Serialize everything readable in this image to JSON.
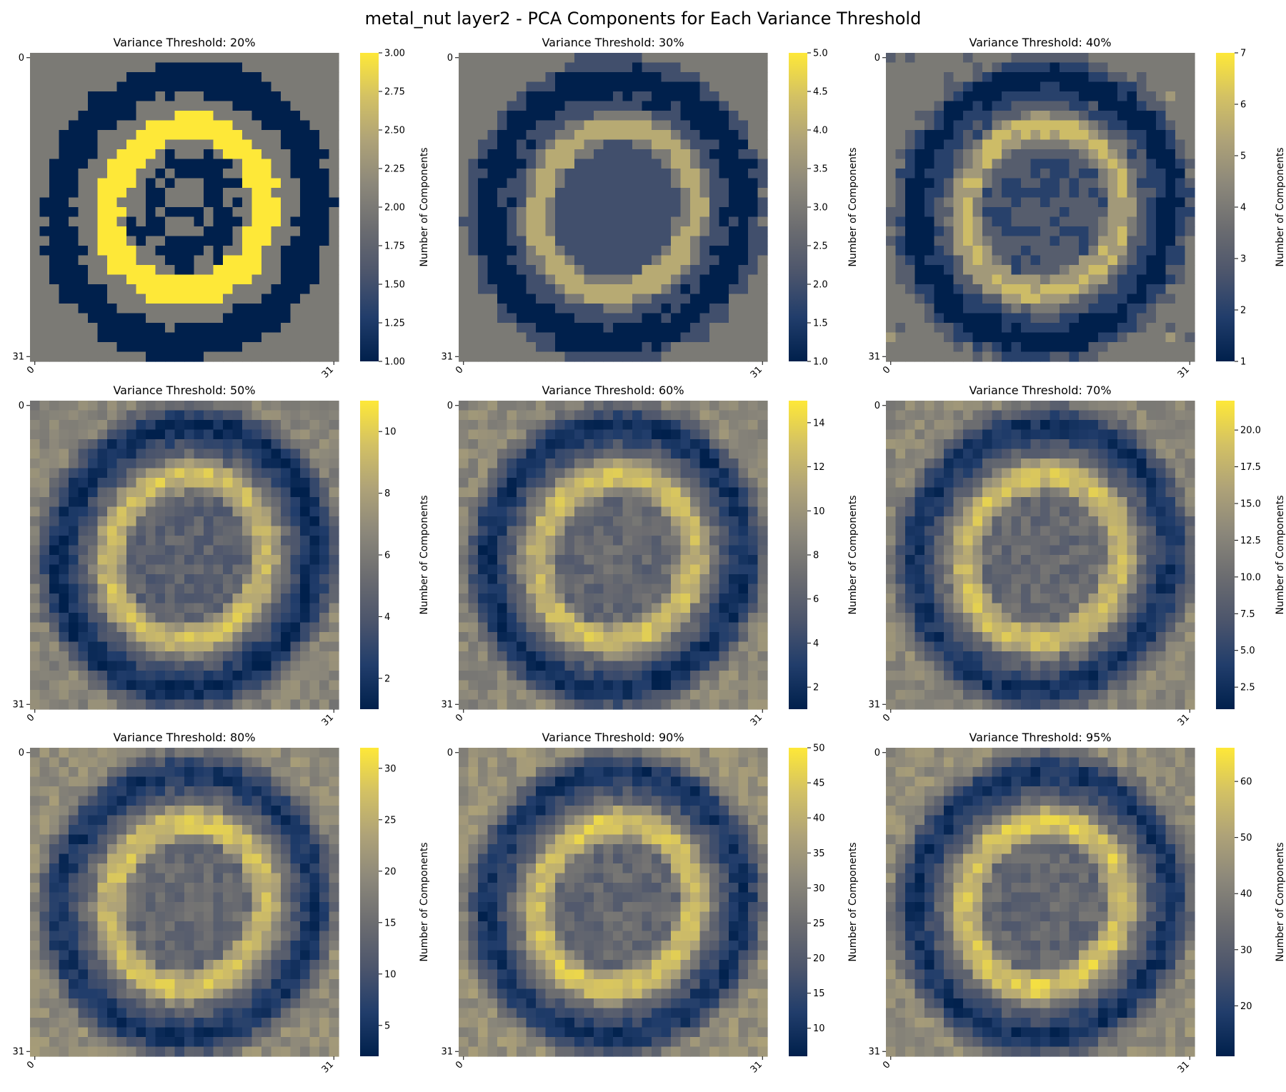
{
  "title": "metal_nut layer2 - PCA Components for Each Variance Threshold",
  "colormap": {
    "name": "cividis",
    "stops": [
      "#00204c",
      "#213d6b",
      "#4c556c",
      "#6b6c70",
      "#8b877a",
      "#aea278",
      "#d3c164",
      "#fee838"
    ]
  },
  "chart_data": [
    {
      "type": "heatmap",
      "title": "Variance Threshold: 20%",
      "threshold": 20,
      "vmin": 1,
      "vmax": 3,
      "cbar_ticks": [
        "1.00",
        "1.25",
        "1.50",
        "1.75",
        "2.00",
        "2.25",
        "2.50",
        "2.75",
        "3.00"
      ],
      "cbar_label": "Number of Components",
      "x_ticks": [
        "0",
        "31"
      ],
      "y_ticks": [
        "0",
        "31"
      ],
      "grid_size": 32,
      "ring_profile": [
        2.0,
        1.0,
        2.0,
        3.0,
        1.3
      ]
    },
    {
      "type": "heatmap",
      "title": "Variance Threshold: 30%",
      "threshold": 30,
      "vmin": 1,
      "vmax": 5,
      "cbar_ticks": [
        "1.0",
        "1.5",
        "2.0",
        "2.5",
        "3.0",
        "3.5",
        "4.0",
        "4.5",
        "5.0"
      ],
      "cbar_label": "Number of Components",
      "x_ticks": [
        "0",
        "31"
      ],
      "y_ticks": [
        "0",
        "31"
      ],
      "grid_size": 32,
      "ring_profile": [
        3.0,
        1.0,
        2.0,
        4.2,
        2.0
      ]
    },
    {
      "type": "heatmap",
      "title": "Variance Threshold: 40%",
      "threshold": 40,
      "vmin": 1,
      "vmax": 7,
      "cbar_ticks": [
        "1",
        "2",
        "3",
        "4",
        "5",
        "6",
        "7"
      ],
      "cbar_label": "Number of Components",
      "x_ticks": [
        "0",
        "31"
      ],
      "y_ticks": [
        "0",
        "31"
      ],
      "grid_size": 32,
      "ring_profile": [
        4.0,
        1.0,
        3.0,
        5.8,
        2.5
      ]
    },
    {
      "type": "heatmap",
      "title": "Variance Threshold: 50%",
      "threshold": 50,
      "vmin": 1,
      "vmax": 11,
      "cbar_ticks": [
        "2",
        "4",
        "6",
        "8",
        "10"
      ],
      "cbar_label": "Number of Components",
      "x_ticks": [
        "0",
        "31"
      ],
      "y_ticks": [
        "0",
        "31"
      ],
      "grid_size": 32,
      "ring_profile": [
        6.5,
        1.5,
        5.0,
        9.5,
        4.5
      ]
    },
    {
      "type": "heatmap",
      "title": "Variance Threshold: 60%",
      "threshold": 60,
      "vmin": 1,
      "vmax": 15,
      "cbar_ticks": [
        "2",
        "4",
        "6",
        "8",
        "10",
        "12",
        "14"
      ],
      "cbar_label": "Number of Components",
      "x_ticks": [
        "0",
        "31"
      ],
      "y_ticks": [
        "0",
        "31"
      ],
      "grid_size": 32,
      "ring_profile": [
        9.0,
        2.0,
        7.0,
        13.0,
        6.5
      ]
    },
    {
      "type": "heatmap",
      "title": "Variance Threshold: 70%",
      "threshold": 70,
      "vmin": 1,
      "vmax": 22,
      "cbar_ticks": [
        "2.5",
        "5.0",
        "7.5",
        "10.0",
        "12.5",
        "15.0",
        "17.5",
        "20.0"
      ],
      "cbar_label": "Number of Components",
      "x_ticks": [
        "0",
        "31"
      ],
      "y_ticks": [
        "0",
        "31"
      ],
      "grid_size": 32,
      "ring_profile": [
        13.0,
        3.0,
        10.0,
        19.0,
        9.5
      ]
    },
    {
      "type": "heatmap",
      "title": "Variance Threshold: 80%",
      "threshold": 80,
      "vmin": 2,
      "vmax": 32,
      "cbar_ticks": [
        "5",
        "10",
        "15",
        "20",
        "25",
        "30"
      ],
      "cbar_label": "Number of Components",
      "x_ticks": [
        "0",
        "31"
      ],
      "y_ticks": [
        "0",
        "31"
      ],
      "grid_size": 32,
      "ring_profile": [
        20.0,
        5.0,
        15.0,
        28.0,
        14.0
      ]
    },
    {
      "type": "heatmap",
      "title": "Variance Threshold: 90%",
      "threshold": 90,
      "vmin": 6,
      "vmax": 50,
      "cbar_ticks": [
        "10",
        "15",
        "20",
        "25",
        "30",
        "35",
        "40",
        "45",
        "50"
      ],
      "cbar_label": "Number of Components",
      "x_ticks": [
        "0",
        "31"
      ],
      "y_ticks": [
        "0",
        "31"
      ],
      "grid_size": 32,
      "ring_profile": [
        33.0,
        10.0,
        25.0,
        45.0,
        23.0
      ]
    },
    {
      "type": "heatmap",
      "title": "Variance Threshold: 95%",
      "threshold": 95,
      "vmin": 11,
      "vmax": 66,
      "cbar_ticks": [
        "20",
        "30",
        "40",
        "50",
        "60"
      ],
      "cbar_label": "Number of Components",
      "x_ticks": [
        "0",
        "31"
      ],
      "y_ticks": [
        "0",
        "31"
      ],
      "grid_size": 32,
      "ring_profile": [
        44.0,
        16.0,
        35.0,
        60.0,
        32.0
      ]
    }
  ]
}
